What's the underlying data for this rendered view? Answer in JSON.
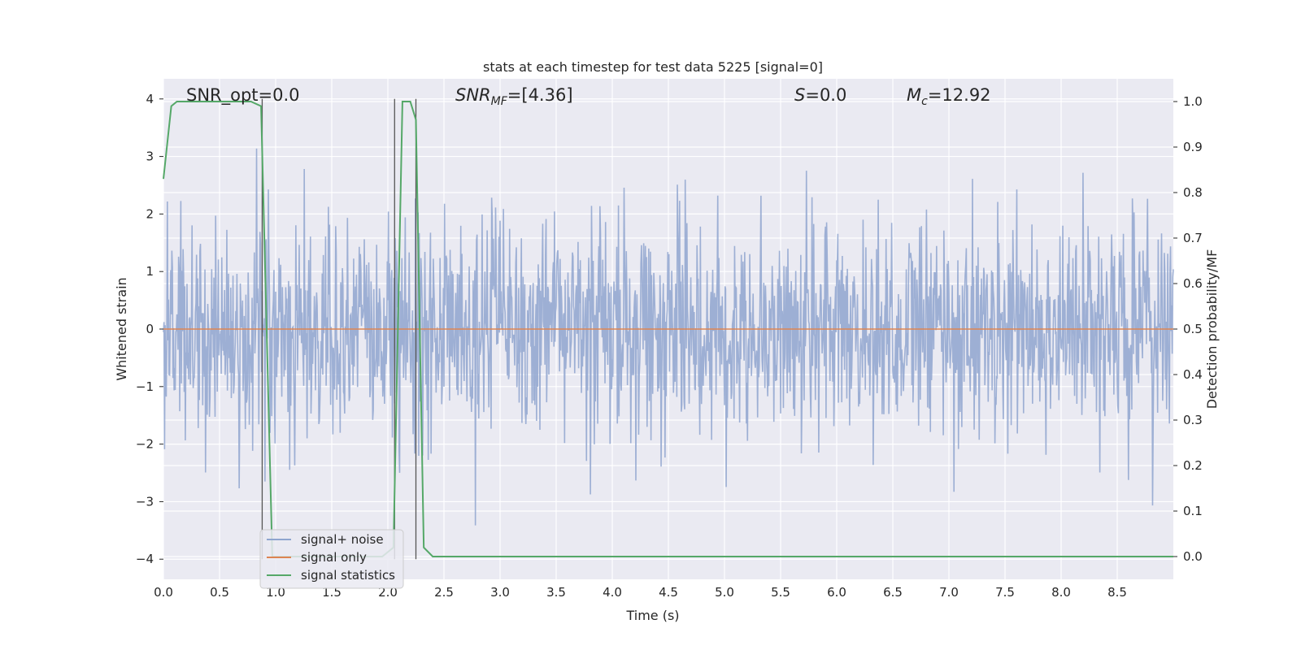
{
  "chart_data": {
    "type": "line",
    "title": "stats at each timestep for test data 5225 [signal=0]",
    "xlabel": "Time (s)",
    "ylabel": "Whitened strain",
    "y2label": "Detection probability/MF",
    "xlim": [
      0.0,
      9.0
    ],
    "ylim": [
      -4.35,
      4.35
    ],
    "y2lim": [
      -0.05,
      1.05
    ],
    "xticks": [
      "0.0",
      "0.5",
      "1.0",
      "1.5",
      "2.0",
      "2.5",
      "3.0",
      "3.5",
      "4.0",
      "4.5",
      "5.0",
      "5.5",
      "6.0",
      "6.5",
      "7.0",
      "7.5",
      "8.0",
      "8.5"
    ],
    "yticks": [
      "4",
      "3",
      "2",
      "1",
      "0",
      "−1",
      "−2",
      "−3",
      "−4"
    ],
    "y2ticks": [
      "1.0",
      "0.9",
      "0.8",
      "0.7",
      "0.6",
      "0.5",
      "0.4",
      "0.3",
      "0.2",
      "0.1",
      "0.0"
    ],
    "grid": true,
    "legend_position": "lower-left",
    "annotations": [
      {
        "id": "snr-opt",
        "text": "SNR_opt=0.0"
      },
      {
        "id": "snr-mf",
        "text": "SNR",
        "sub": "MF",
        "tail": "=[4.36]"
      },
      {
        "id": "s",
        "text": "S",
        "tail": "=0.0"
      },
      {
        "id": "mc",
        "text": "M",
        "sub": "c",
        "tail": "=12.92"
      }
    ],
    "vlines_x": [
      0.88,
      2.06,
      2.25
    ],
    "series": [
      {
        "name": "signal+ noise",
        "color": "#8fa5cf",
        "kind": "noise",
        "sigma": 0.95,
        "seed": 5225,
        "n": 1800
      },
      {
        "name": "signal only",
        "color": "#dd8452",
        "kind": "constant",
        "value": 0.0
      },
      {
        "name": "signal statistics",
        "color": "#55a868",
        "axis": "right",
        "x": [
          0.0,
          0.07,
          0.12,
          0.2,
          0.5,
          0.78,
          0.87,
          0.97,
          1.07,
          1.5,
          1.95,
          2.05,
          2.13,
          2.2,
          2.25,
          2.32,
          2.4,
          9.0
        ],
        "y": [
          0.83,
          0.99,
          1.0,
          1.0,
          1.0,
          1.0,
          0.99,
          0.0,
          0.0,
          0.0,
          0.0,
          0.02,
          1.0,
          1.0,
          0.96,
          0.02,
          0.0,
          0.0
        ]
      }
    ]
  }
}
